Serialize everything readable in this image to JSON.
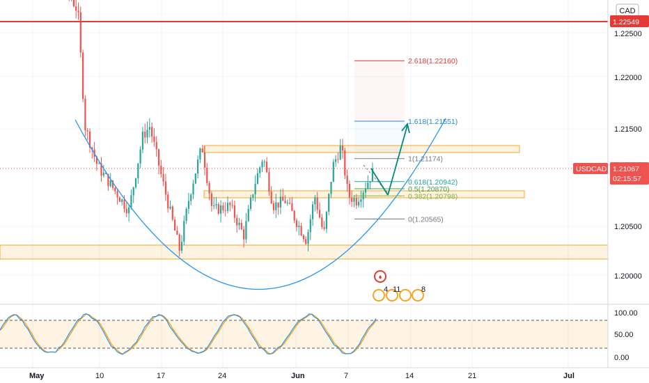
{
  "chart_data": {
    "type": "candlestick",
    "symbol": "USDCAD",
    "currency": "CAD",
    "last_price": "1.21067",
    "countdown": "02:15:57",
    "resistance_label": "1.22549",
    "y_ticks": [
      "1.22500",
      "1.22000",
      "1.21500",
      "1.20500",
      "1.20000"
    ],
    "x_ticks": [
      "May",
      "10",
      "17",
      "24",
      "Jun",
      "7",
      "14",
      "21",
      "Jul"
    ],
    "x_tick_positions": [
      "2021-05-01",
      "2021-05-10",
      "2021-05-17",
      "2021-05-24",
      "2021-06-01",
      "2021-06-07",
      "2021-06-14",
      "2021-06-21",
      "2021-07-01"
    ],
    "price_range": [
      1.197,
      1.229
    ],
    "fib_levels": [
      {
        "label": "2.618(1.22160)",
        "price": 1.2216,
        "color": "#e53935"
      },
      {
        "label": "1.618(1.21551)",
        "price": 1.21551,
        "color": "#1e88e5"
      },
      {
        "label": "1(1.21174)",
        "price": 1.21174,
        "color": "#787b86"
      },
      {
        "label": "0.618(1.20942)",
        "price": 1.20942,
        "color": "#26a69a"
      },
      {
        "label": "0.5(1.20870)",
        "price": 1.2087,
        "color": "#43a047"
      },
      {
        "label": "0.382(1.20798)",
        "price": 1.20798,
        "color": "#7cb342"
      },
      {
        "label": "0(1.20565)",
        "price": 1.20565,
        "color": "#787b86"
      }
    ],
    "events": [
      "4",
      "11",
      "8"
    ],
    "oscillator": {
      "ticks": [
        "100.00",
        "50.00",
        "0.00"
      ],
      "upper": 80,
      "lower": 20
    },
    "colors": {
      "up": "#26a69a",
      "down": "#ef5350",
      "resistance": "#e53935",
      "zone": "#f5a623",
      "arc": "#2196f3",
      "arrow": "#00897b",
      "osc_k": "#2196f3",
      "osc_d": "#ff9800"
    }
  }
}
